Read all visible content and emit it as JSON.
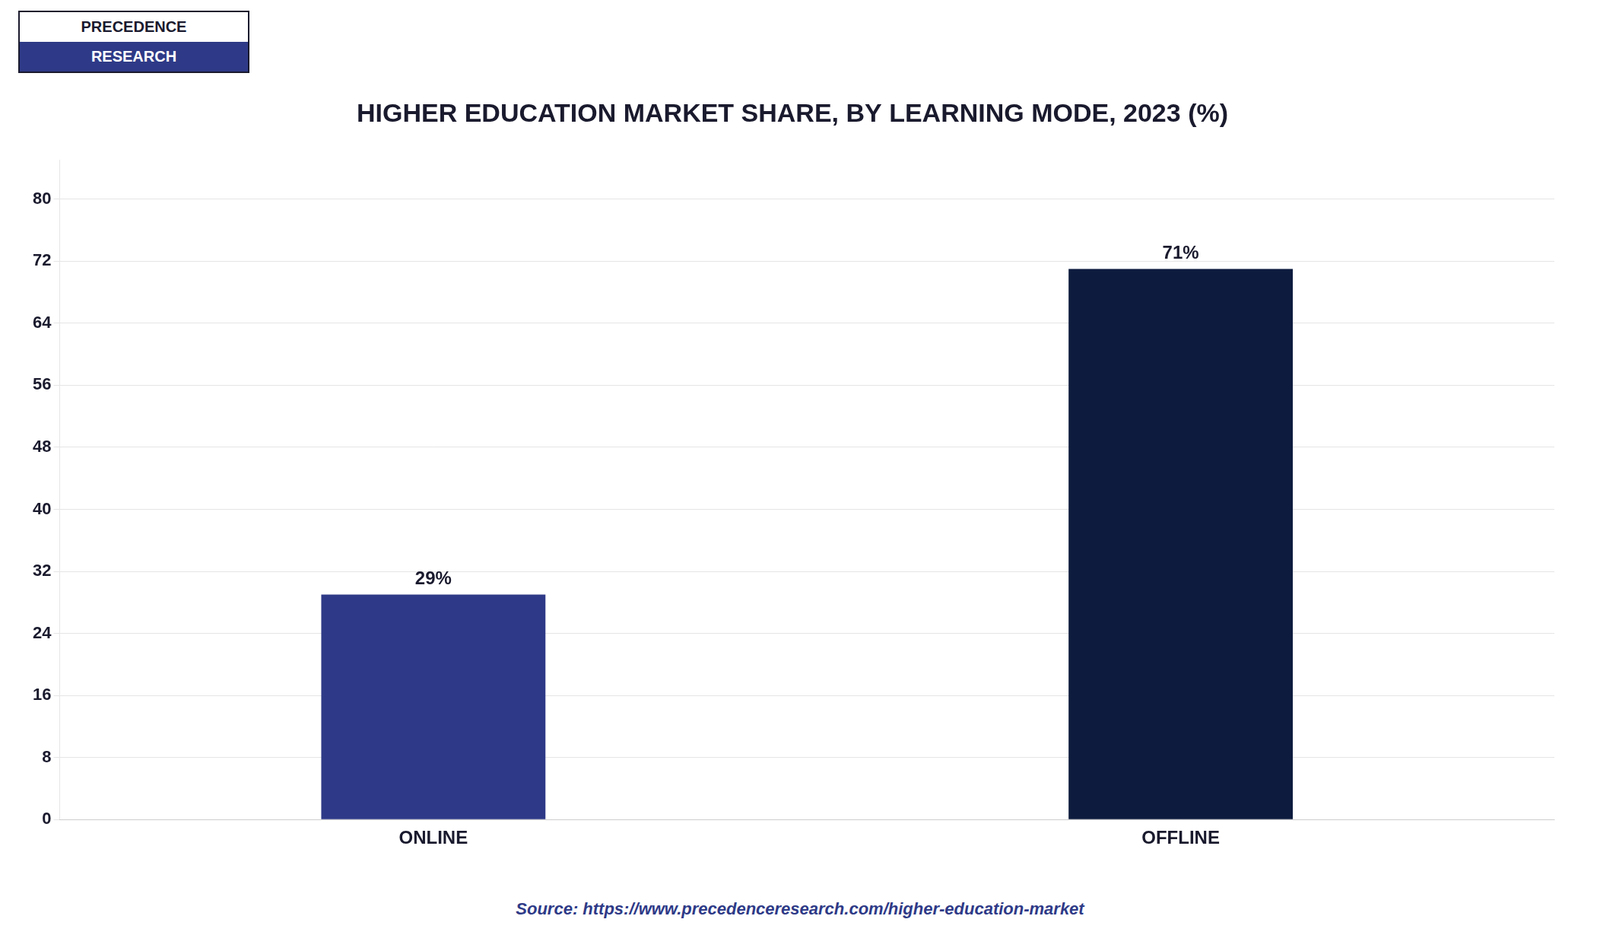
{
  "chart_data": {
    "type": "bar",
    "title": "HIGHER EDUCATION MARKET SHARE, BY LEARNING MODE, 2023 (%)",
    "categories": [
      "ONLINE",
      "OFFLINE"
    ],
    "values": [
      29,
      71
    ],
    "value_labels": [
      "29%",
      "71%"
    ],
    "data_labels": true,
    "colors": [
      "#2E3A87",
      "#0D1B3E"
    ],
    "ylim": [
      0,
      85
    ],
    "yticks": [
      0,
      8,
      16,
      24,
      32,
      40,
      48,
      56,
      64,
      72,
      80
    ],
    "grid": true,
    "annotations": [
      "PRECEDENCE",
      "RESEARCH",
      "Source: https://www.precedenceresearch.com/higher-education-market"
    ]
  }
}
